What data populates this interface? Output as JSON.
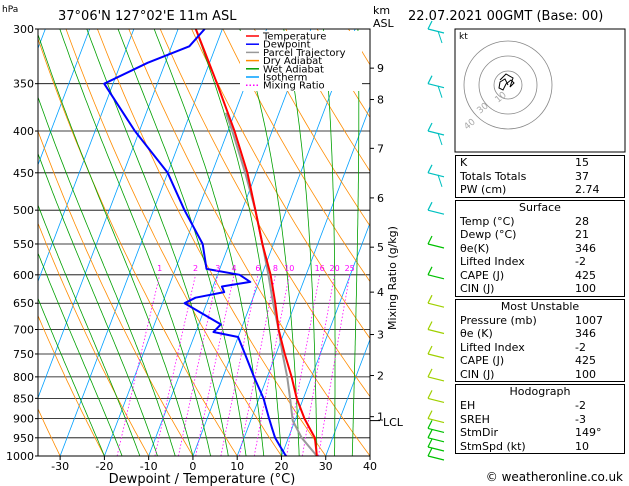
{
  "header": {
    "hpa_label": "hPa",
    "location": "37°06'N 127°02'E 11m ASL",
    "km_label": "km",
    "asl_label": "ASL",
    "datetime": "22.07.2021 00GMT (Base: 00)"
  },
  "credit": "© weatheronline.co.uk",
  "hodograph_label": "kt",
  "hodograph_rings": [
    "10",
    "30",
    "40"
  ],
  "chart_data": {
    "type": "skew-t log-p",
    "xlabel": "Dewpoint / Temperature (°C)",
    "ylabel_right": "Mixing Ratio (g/kg)",
    "x_ticks": [
      "-30",
      "-20",
      "-10",
      "0",
      "10",
      "20",
      "30",
      "40"
    ],
    "x_range": [
      -35,
      40
    ],
    "pressure_levels": [
      "300",
      "350",
      "400",
      "450",
      "500",
      "550",
      "600",
      "650",
      "700",
      "750",
      "800",
      "850",
      "900",
      "950",
      "1000"
    ],
    "km_ticks": [
      {
        "label": "9",
        "p": 335
      },
      {
        "label": "8",
        "p": 366
      },
      {
        "label": "7",
        "p": 420
      },
      {
        "label": "6",
        "p": 483
      },
      {
        "label": "5",
        "p": 555
      },
      {
        "label": "4",
        "p": 630
      },
      {
        "label": "3",
        "p": 710
      },
      {
        "label": "2",
        "p": 797
      },
      {
        "label": "1",
        "p": 895
      }
    ],
    "lcl_label": "LCL",
    "lcl_p": 905,
    "mixing_ratio_labels": [
      "1",
      "2",
      "3",
      "4",
      "6",
      "8",
      "10",
      "16",
      "20",
      "25"
    ],
    "legend": [
      {
        "name": "Temperature",
        "color": "#ff0000"
      },
      {
        "name": "Dewpoint",
        "color": "#0000ff"
      },
      {
        "name": "Parcel Trajectory",
        "color": "#999999"
      },
      {
        "name": "Dry Adiabat",
        "color": "#ff8c00"
      },
      {
        "name": "Wet Adiabat",
        "color": "#00a000"
      },
      {
        "name": "Isotherm",
        "color": "#00a0ff"
      },
      {
        "name": "Mixing Ratio",
        "color": "#ff00ff"
      }
    ],
    "temperature": [
      {
        "p": 1000,
        "t": 28
      },
      {
        "p": 975,
        "t": 27
      },
      {
        "p": 950,
        "t": 26
      },
      {
        "p": 925,
        "t": 24
      },
      {
        "p": 900,
        "t": 22
      },
      {
        "p": 850,
        "t": 18.5
      },
      {
        "p": 800,
        "t": 15.5
      },
      {
        "p": 750,
        "t": 12
      },
      {
        "p": 700,
        "t": 8.5
      },
      {
        "p": 650,
        "t": 5.5
      },
      {
        "p": 600,
        "t": 2
      },
      {
        "p": 550,
        "t": -2.5
      },
      {
        "p": 500,
        "t": -7
      },
      {
        "p": 450,
        "t": -12
      },
      {
        "p": 400,
        "t": -18.5
      },
      {
        "p": 350,
        "t": -26.5
      },
      {
        "p": 320,
        "t": -32
      },
      {
        "p": 300,
        "t": -36
      }
    ],
    "dewpoint": [
      {
        "p": 1000,
        "t": 21
      },
      {
        "p": 975,
        "t": 19
      },
      {
        "p": 950,
        "t": 17
      },
      {
        "p": 925,
        "t": 15.5
      },
      {
        "p": 900,
        "t": 14
      },
      {
        "p": 850,
        "t": 11
      },
      {
        "p": 800,
        "t": 7
      },
      {
        "p": 750,
        "t": 3
      },
      {
        "p": 715,
        "t": 0
      },
      {
        "p": 705,
        "t": -6
      },
      {
        "p": 690,
        "t": -5
      },
      {
        "p": 650,
        "t": -15
      },
      {
        "p": 640,
        "t": -13
      },
      {
        "p": 630,
        "t": -7
      },
      {
        "p": 620,
        "t": -8
      },
      {
        "p": 612,
        "t": -2
      },
      {
        "p": 600,
        "t": -5
      },
      {
        "p": 590,
        "t": -13
      },
      {
        "p": 550,
        "t": -16
      },
      {
        "p": 500,
        "t": -23
      },
      {
        "p": 450,
        "t": -30
      },
      {
        "p": 400,
        "t": -41
      },
      {
        "p": 350,
        "t": -52
      },
      {
        "p": 330,
        "t": -44
      },
      {
        "p": 315,
        "t": -36
      },
      {
        "p": 300,
        "t": -34
      }
    ],
    "parcel": [
      {
        "p": 1000,
        "t": 28
      },
      {
        "p": 950,
        "t": 23
      },
      {
        "p": 905,
        "t": 19.5
      },
      {
        "p": 850,
        "t": 17
      },
      {
        "p": 800,
        "t": 14.5
      },
      {
        "p": 750,
        "t": 11.5
      },
      {
        "p": 700,
        "t": 8.5
      },
      {
        "p": 650,
        "t": 5
      },
      {
        "p": 600,
        "t": 1.5
      },
      {
        "p": 550,
        "t": -2.5
      },
      {
        "p": 500,
        "t": -7
      },
      {
        "p": 450,
        "t": -12.5
      },
      {
        "p": 400,
        "t": -19
      },
      {
        "p": 380,
        "t": -22
      }
    ]
  },
  "indices": [
    {
      "label": "K",
      "value": "15"
    },
    {
      "label": "Totals Totals",
      "value": "37"
    },
    {
      "label": "PW (cm)",
      "value": "2.74"
    }
  ],
  "surface": {
    "title": "Surface",
    "rows": [
      {
        "label": "Temp (°C)",
        "value": "28"
      },
      {
        "label": "Dewp (°C)",
        "value": "21"
      },
      {
        "label": "θe(K)",
        "value": "346"
      },
      {
        "label": "Lifted Index",
        "value": "-2"
      },
      {
        "label": "CAPE (J)",
        "value": "425"
      },
      {
        "label": "CIN (J)",
        "value": "100"
      }
    ]
  },
  "most_unstable": {
    "title": "Most Unstable",
    "rows": [
      {
        "label": "Pressure (mb)",
        "value": "1007"
      },
      {
        "label": "θe (K)",
        "value": "346"
      },
      {
        "label": "Lifted Index",
        "value": "-2"
      },
      {
        "label": "CAPE (J)",
        "value": "425"
      },
      {
        "label": "CIN (J)",
        "value": "100"
      }
    ]
  },
  "hodograph": {
    "title": "Hodograph",
    "rows": [
      {
        "label": "EH",
        "value": "-2"
      },
      {
        "label": "SREH",
        "value": "-3"
      },
      {
        "label": "StmDir",
        "value": "149°"
      },
      {
        "label": "StmSpd (kt)",
        "value": "10"
      }
    ]
  }
}
